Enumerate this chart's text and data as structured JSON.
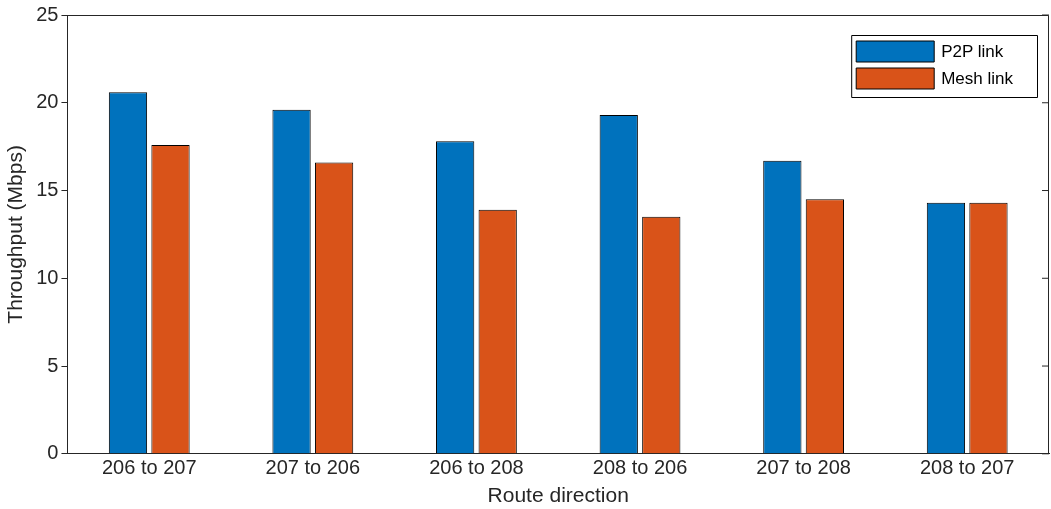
{
  "chart_data": {
    "type": "bar",
    "xlabel": "Route direction",
    "ylabel": "Throughput (Mbps)",
    "categories": [
      "206 to 207",
      "207 to 206",
      "206 to 208",
      "208 to 206",
      "207 to 208",
      "208 to 207"
    ],
    "series": [
      {
        "name": "P2P link",
        "color": "#0072bd",
        "values": [
          20.6,
          19.6,
          17.8,
          19.3,
          16.7,
          14.3
        ]
      },
      {
        "name": "Mesh link",
        "color": "#d95319",
        "values": [
          17.6,
          16.6,
          13.9,
          13.5,
          14.5,
          14.3
        ]
      }
    ],
    "ylim": [
      0,
      25
    ],
    "yticks": [
      0,
      5,
      10,
      15,
      20,
      25
    ],
    "grid": false,
    "legend": "top right"
  }
}
